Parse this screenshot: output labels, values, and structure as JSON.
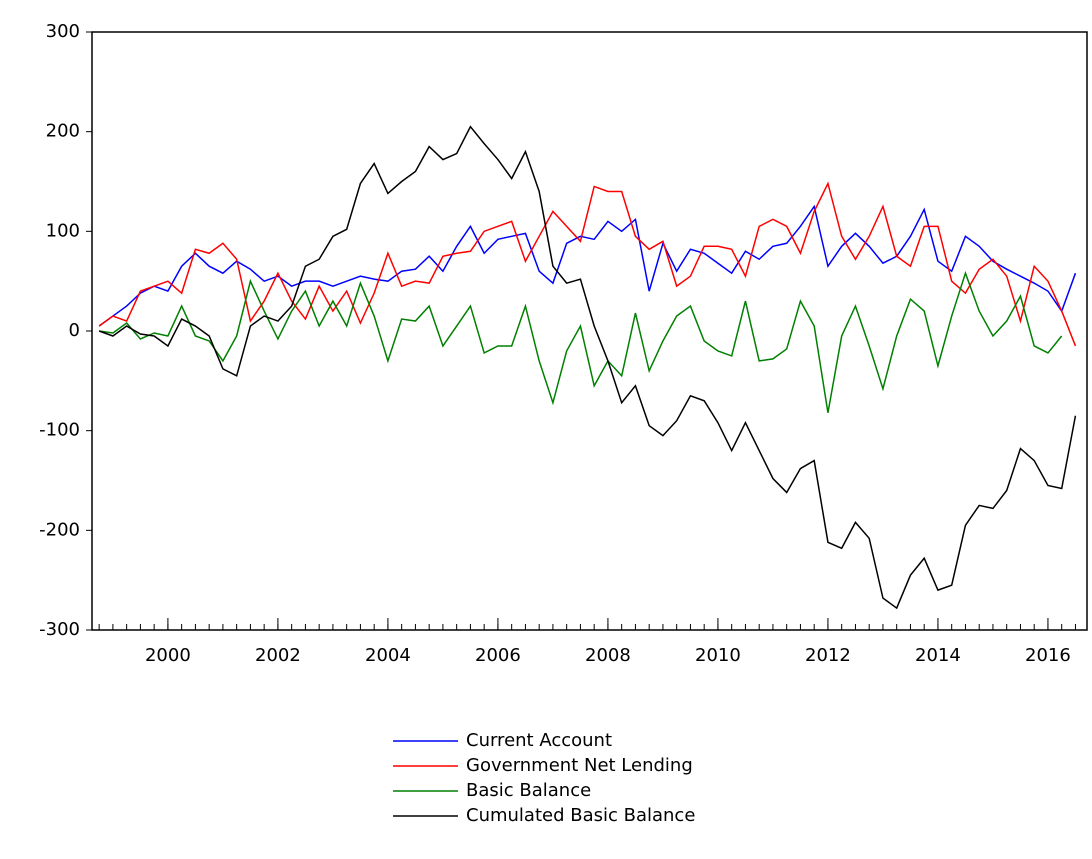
{
  "chart_data": {
    "type": "line",
    "x": [
      1998.75,
      1999,
      1999.25,
      1999.5,
      1999.75,
      2000,
      2000.25,
      2000.5,
      2000.75,
      2001,
      2001.25,
      2001.5,
      2001.75,
      2002,
      2002.25,
      2002.5,
      2002.75,
      2003,
      2003.25,
      2003.5,
      2003.75,
      2004,
      2004.25,
      2004.5,
      2004.75,
      2005,
      2005.25,
      2005.5,
      2005.75,
      2006,
      2006.25,
      2006.5,
      2006.75,
      2007,
      2007.25,
      2007.5,
      2007.75,
      2008,
      2008.25,
      2008.5,
      2008.75,
      2009,
      2009.25,
      2009.5,
      2009.75,
      2010,
      2010.25,
      2010.5,
      2010.75,
      2011,
      2011.25,
      2011.5,
      2011.75,
      2012,
      2012.25,
      2012.5,
      2012.75,
      2013,
      2013.25,
      2013.5,
      2013.75,
      2014,
      2014.25,
      2014.5,
      2014.75,
      2015,
      2015.25,
      2015.5,
      2015.75,
      2016,
      2016.25,
      2016.5
    ],
    "series": [
      {
        "name": "Current Account",
        "color": "#0000ff",
        "values": [
          5,
          15,
          25,
          38,
          45,
          40,
          65,
          78,
          65,
          58,
          70,
          62,
          50,
          55,
          45,
          50,
          50,
          45,
          50,
          55,
          52,
          50,
          60,
          62,
          75,
          60,
          85,
          105,
          78,
          92,
          95,
          98,
          60,
          48,
          88,
          95,
          92,
          110,
          100,
          112,
          40,
          88,
          60,
          82,
          78,
          68,
          58,
          80,
          72,
          85,
          88,
          105,
          125,
          65,
          85,
          98,
          85,
          68,
          75,
          95,
          122,
          70,
          60,
          95,
          85,
          70,
          62,
          55,
          48,
          40,
          20,
          58
        ]
      },
      {
        "name": "Government Net Lending",
        "color": "#ff0000",
        "values": [
          5,
          15,
          10,
          40,
          45,
          50,
          38,
          82,
          78,
          88,
          72,
          10,
          30,
          58,
          30,
          12,
          45,
          20,
          40,
          8,
          38,
          78,
          45,
          50,
          48,
          75,
          78,
          80,
          100,
          105,
          110,
          70,
          95,
          120,
          105,
          90,
          145,
          140,
          140,
          95,
          82,
          90,
          45,
          55,
          85,
          85,
          82,
          55,
          105,
          112,
          105,
          78,
          120,
          148,
          95,
          72,
          95,
          125,
          75,
          65,
          105,
          105,
          50,
          38,
          62,
          72,
          55,
          10,
          65,
          50,
          20,
          -15
        ]
      },
      {
        "name": "Basic Balance",
        "color": "#008000",
        "values": [
          0,
          -2,
          8,
          -8,
          -2,
          -5,
          25,
          -5,
          -10,
          -30,
          -5,
          50,
          20,
          -8,
          20,
          40,
          5,
          30,
          5,
          48,
          15,
          -30,
          12,
          10,
          25,
          -15,
          5,
          25,
          -22,
          -15,
          -15,
          25,
          -30,
          -72,
          -20,
          5,
          -55,
          -30,
          -45,
          18,
          -40,
          -10,
          15,
          25,
          -10,
          -20,
          -25,
          30,
          -30,
          -28,
          -18,
          30,
          5,
          -82,
          -5,
          25,
          -15,
          -58,
          -5,
          32,
          20,
          -35,
          15,
          58,
          20,
          -5,
          10,
          35,
          -15,
          -22,
          -5,
          null
        ]
      },
      {
        "name": "Cumulated Basic Balance",
        "color": "#000000",
        "values": [
          0,
          -5,
          5,
          -3,
          -5,
          -15,
          12,
          5,
          -5,
          -38,
          -45,
          5,
          15,
          10,
          25,
          65,
          72,
          95,
          102,
          148,
          168,
          138,
          150,
          160,
          185,
          172,
          178,
          205,
          188,
          172,
          153,
          180,
          140,
          65,
          48,
          52,
          5,
          -30,
          -72,
          -55,
          -95,
          -105,
          -90,
          -65,
          -70,
          -92,
          -120,
          -92,
          -120,
          -148,
          -162,
          -138,
          -130,
          -212,
          -218,
          -192,
          -208,
          -268,
          -278,
          -245,
          -228,
          -260,
          -255,
          -195,
          -175,
          -178,
          -160,
          -118,
          -130,
          -155,
          -158,
          -85
        ]
      }
    ],
    "xlim": [
      1998.62,
      2016.71
    ],
    "xticks": [
      2000,
      2002,
      2004,
      2006,
      2008,
      2010,
      2012,
      2014,
      2016
    ],
    "ylim": [
      -300,
      300
    ],
    "yticks": [
      -300,
      -200,
      -100,
      0,
      100,
      200,
      300
    ]
  }
}
